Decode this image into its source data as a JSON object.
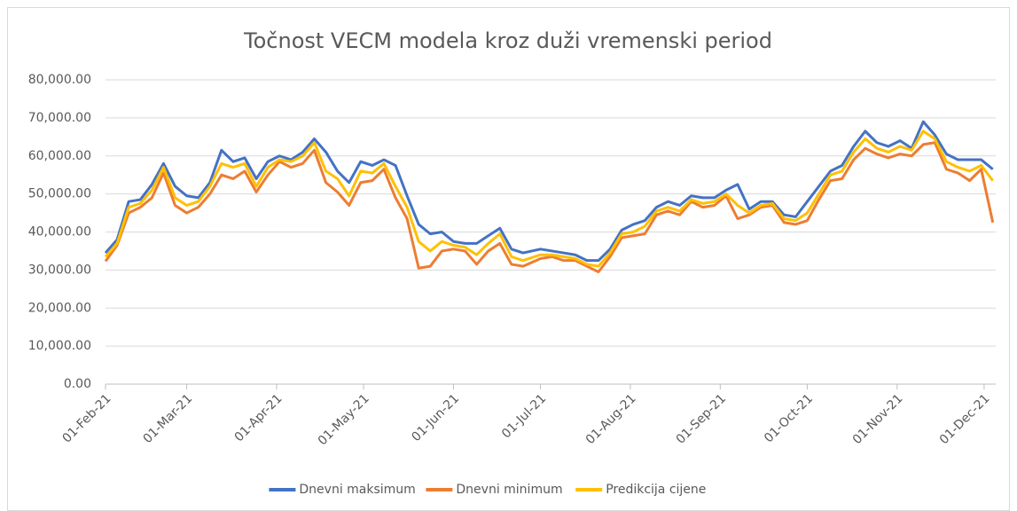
{
  "chart_data": {
    "type": "line",
    "title": "Točnost VECM modela kroz duži vremenski period",
    "x": [
      "2021-02-01",
      "2021-02-05",
      "2021-02-09",
      "2021-02-13",
      "2021-02-17",
      "2021-02-21",
      "2021-02-25",
      "2021-03-01",
      "2021-03-05",
      "2021-03-09",
      "2021-03-13",
      "2021-03-17",
      "2021-03-21",
      "2021-03-25",
      "2021-03-29",
      "2021-04-02",
      "2021-04-06",
      "2021-04-10",
      "2021-04-14",
      "2021-04-18",
      "2021-04-22",
      "2021-04-26",
      "2021-04-30",
      "2021-05-04",
      "2021-05-08",
      "2021-05-12",
      "2021-05-16",
      "2021-05-20",
      "2021-05-24",
      "2021-05-28",
      "2021-06-01",
      "2021-06-05",
      "2021-06-09",
      "2021-06-13",
      "2021-06-17",
      "2021-06-21",
      "2021-06-25",
      "2021-07-01",
      "2021-07-05",
      "2021-07-09",
      "2021-07-13",
      "2021-07-17",
      "2021-07-21",
      "2021-07-25",
      "2021-07-29",
      "2021-08-02",
      "2021-08-06",
      "2021-08-10",
      "2021-08-14",
      "2021-08-18",
      "2021-08-22",
      "2021-08-26",
      "2021-08-30",
      "2021-09-03",
      "2021-09-07",
      "2021-09-11",
      "2021-09-15",
      "2021-09-19",
      "2021-09-23",
      "2021-09-27",
      "2021-10-01",
      "2021-10-05",
      "2021-10-09",
      "2021-10-13",
      "2021-10-17",
      "2021-10-21",
      "2021-10-25",
      "2021-10-29",
      "2021-11-02",
      "2021-11-06",
      "2021-11-10",
      "2021-11-14",
      "2021-11-18",
      "2021-11-22",
      "2021-11-26",
      "2021-11-30",
      "2021-12-04"
    ],
    "series": [
      {
        "name": "Dnevni maksimum",
        "color": "#4472c4",
        "values": [
          34500,
          38000,
          48000,
          48500,
          52500,
          58000,
          52000,
          49500,
          49000,
          53000,
          61500,
          58500,
          59500,
          54000,
          58500,
          60000,
          59000,
          61000,
          64500,
          61000,
          56000,
          53000,
          58500,
          57500,
          59000,
          57500,
          49500,
          42000,
          39500,
          40000,
          37500,
          37000,
          37000,
          39000,
          41000,
          35500,
          34500,
          35500,
          35000,
          34500,
          34000,
          32500,
          32500,
          35500,
          40500,
          42000,
          43000,
          46500,
          48000,
          47000,
          49500,
          49000,
          49000,
          51000,
          52500,
          46000,
          48000,
          48000,
          44500,
          44000,
          48000,
          52000,
          56000,
          57500,
          62500,
          66500,
          63500,
          62500,
          64000,
          62000,
          69000,
          65500,
          60500,
          59000,
          59000,
          59000,
          56500
        ]
      },
      {
        "name": "Dnevni minimum",
        "color": "#ed7d31",
        "values": [
          32300,
          36500,
          45000,
          46500,
          49000,
          55500,
          47000,
          45000,
          46500,
          50000,
          55000,
          54000,
          56000,
          50500,
          55000,
          58500,
          57000,
          58000,
          61500,
          53000,
          50500,
          47000,
          53000,
          53500,
          56500,
          49000,
          43500,
          30500,
          31000,
          35000,
          35500,
          35000,
          31500,
          35000,
          37000,
          31500,
          31000,
          33000,
          33500,
          32500,
          32500,
          31000,
          29500,
          33500,
          38500,
          39000,
          39500,
          44500,
          45500,
          44500,
          48000,
          46500,
          47000,
          49500,
          43500,
          44500,
          46500,
          47000,
          42500,
          42000,
          43000,
          48500,
          53500,
          54000,
          59000,
          62000,
          60500,
          59500,
          60500,
          60000,
          63000,
          63500,
          56500,
          55500,
          53500,
          56500,
          42500
        ]
      },
      {
        "name": "Predikcija cijene",
        "color": "#ffc000",
        "values": [
          33500,
          37000,
          46500,
          47500,
          51000,
          57000,
          49000,
          47000,
          48000,
          52000,
          58000,
          57000,
          58000,
          52000,
          57000,
          59000,
          58500,
          60000,
          63500,
          56000,
          54000,
          49500,
          56000,
          55500,
          58000,
          52000,
          46500,
          37500,
          35000,
          37500,
          36500,
          36000,
          34000,
          37000,
          39500,
          33500,
          32500,
          34000,
          34000,
          33500,
          33000,
          31500,
          31000,
          34500,
          39500,
          40000,
          41500,
          45500,
          46500,
          45500,
          48500,
          47500,
          48000,
          50000,
          47000,
          45000,
          47000,
          47500,
          43500,
          43000,
          45000,
          50000,
          55000,
          56000,
          61000,
          64500,
          62000,
          61000,
          62500,
          61500,
          66500,
          64500,
          58500,
          57000,
          56000,
          57500,
          53500
        ]
      }
    ],
    "xlim": [
      "2021-02-01",
      "2021-12-05"
    ],
    "xticks": [
      {
        "value": "2021-02-01",
        "label": "01-Feb-21"
      },
      {
        "value": "2021-03-01",
        "label": "01-Mar-21"
      },
      {
        "value": "2021-04-01",
        "label": "01-Apr-21"
      },
      {
        "value": "2021-05-01",
        "label": "01-May-21"
      },
      {
        "value": "2021-06-01",
        "label": "01-Jun-21"
      },
      {
        "value": "2021-07-01",
        "label": "01-Jul-21"
      },
      {
        "value": "2021-08-01",
        "label": "01-Aug-21"
      },
      {
        "value": "2021-09-01",
        "label": "01-Sep-21"
      },
      {
        "value": "2021-10-01",
        "label": "01-Oct-21"
      },
      {
        "value": "2021-11-01",
        "label": "01-Nov-21"
      },
      {
        "value": "2021-12-01",
        "label": "01-Dec-21"
      }
    ],
    "ylim": [
      0,
      80000
    ],
    "yticks": [
      {
        "value": 0,
        "label": "0.00"
      },
      {
        "value": 10000,
        "label": "10,000.00"
      },
      {
        "value": 20000,
        "label": "20,000.00"
      },
      {
        "value": 30000,
        "label": "30,000.00"
      },
      {
        "value": 40000,
        "label": "40,000.00"
      },
      {
        "value": 50000,
        "label": "50,000.00"
      },
      {
        "value": 60000,
        "label": "60,000.00"
      },
      {
        "value": 70000,
        "label": "70,000.00"
      },
      {
        "value": 80000,
        "label": "80,000.00"
      }
    ],
    "grid": true,
    "legend": "bottom"
  }
}
